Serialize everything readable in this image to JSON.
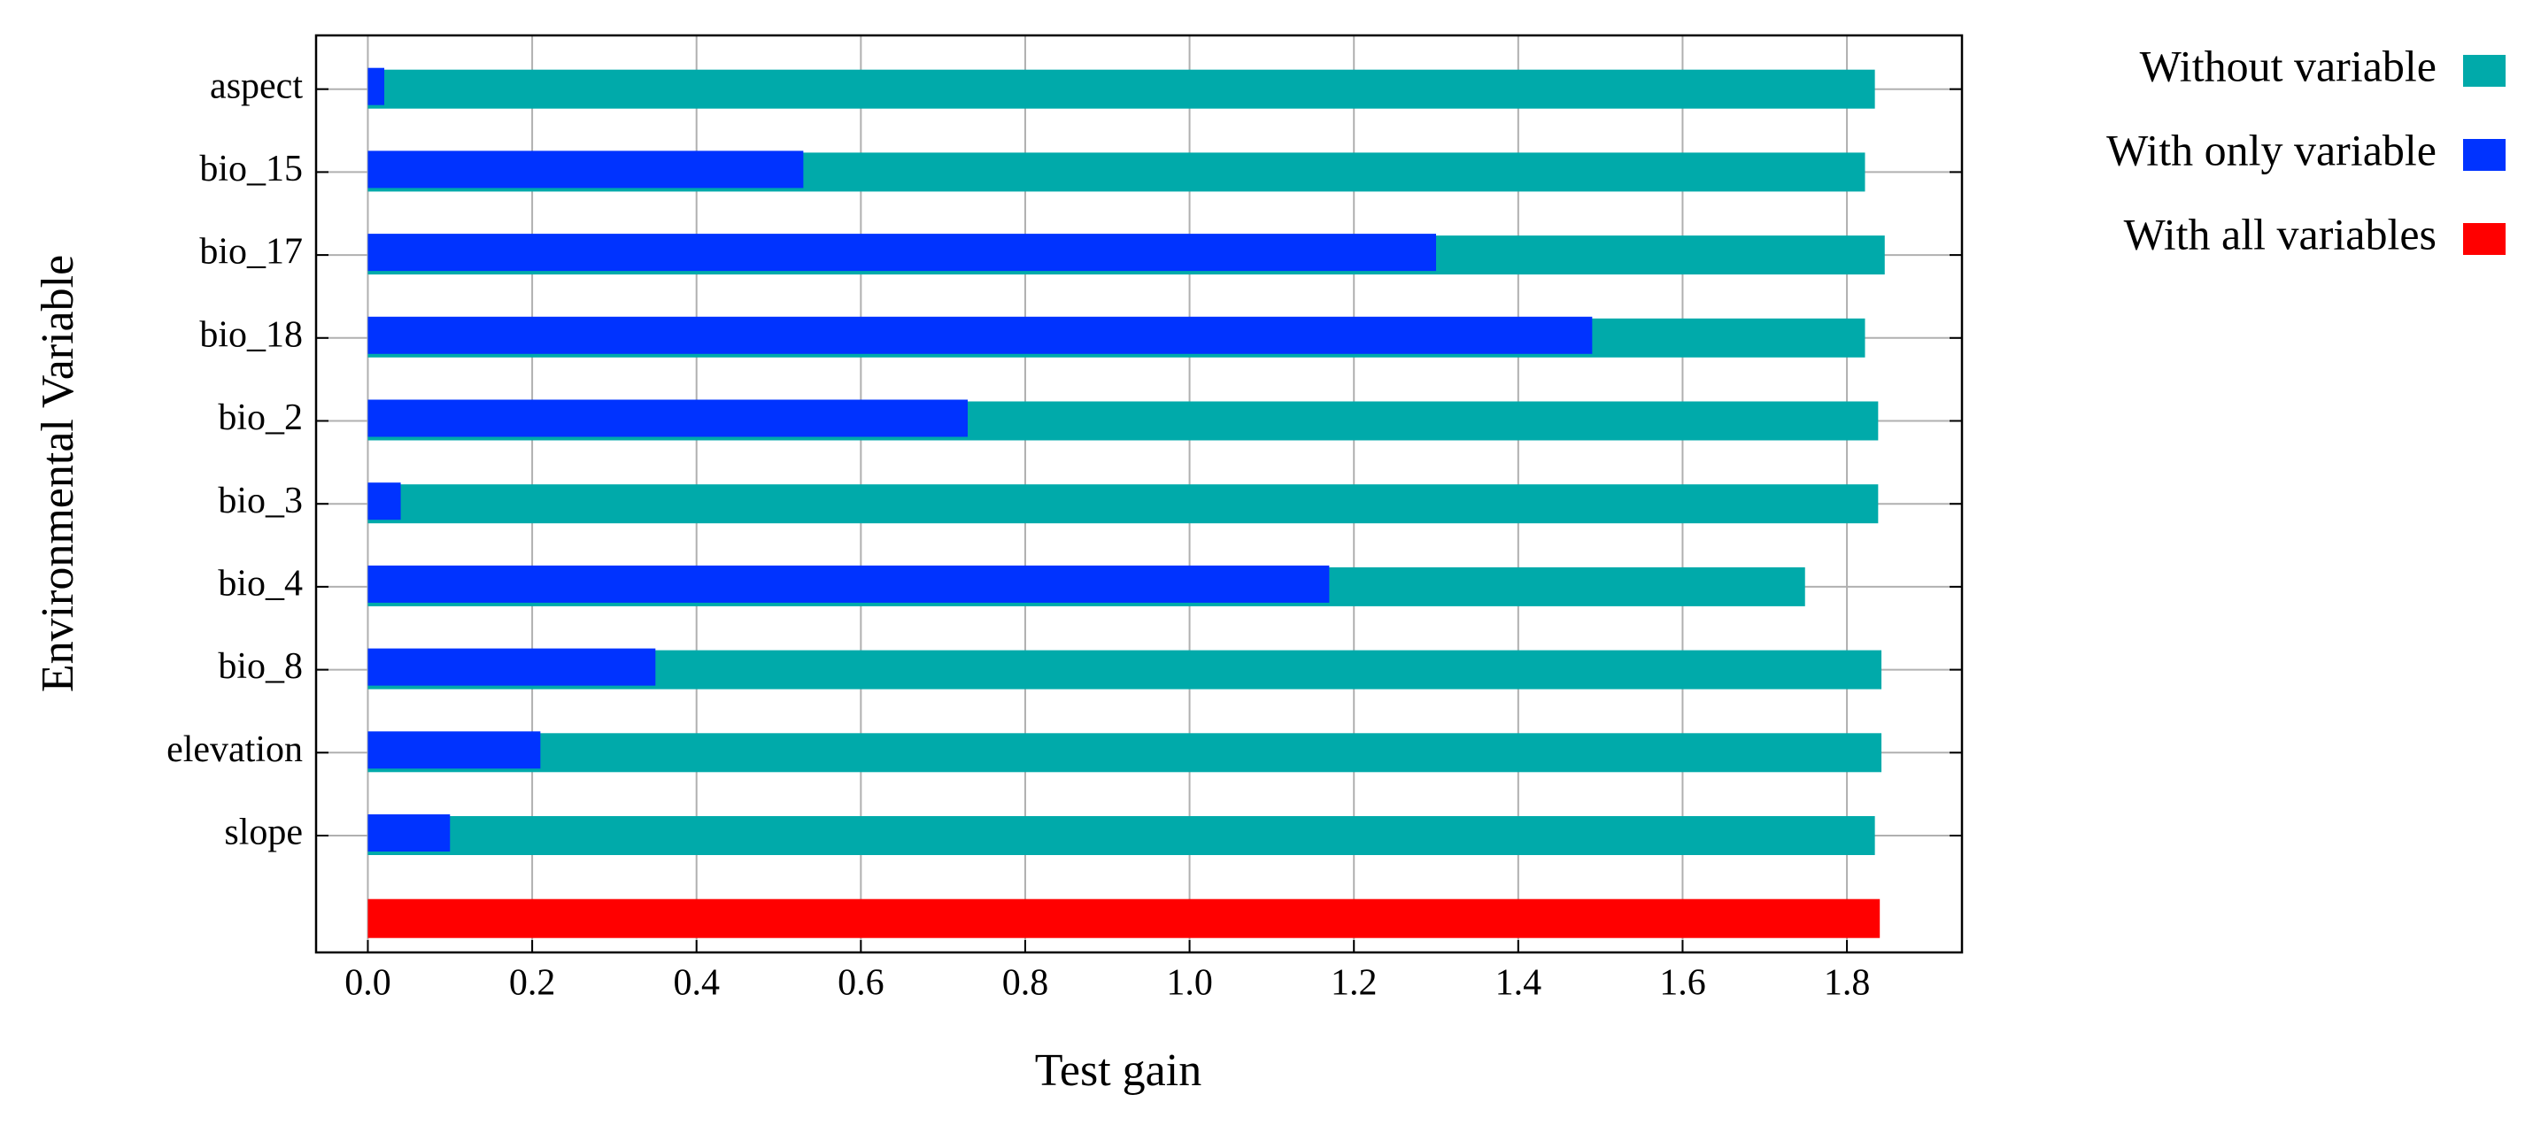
{
  "chart_data": {
    "type": "bar",
    "orientation": "horizontal",
    "x_label": "Test gain",
    "y_label": "Environmental Variable",
    "categories": [
      "aspect",
      "bio_15",
      "bio_17",
      "bio_18",
      "bio_2",
      "bio_3",
      "bio_4",
      "bio_8",
      "elevation",
      "slope",
      null
    ],
    "series": [
      {
        "name": "Without variable",
        "color": "#00aaaa",
        "values": [
          1.834,
          1.822,
          1.846,
          1.822,
          1.838,
          1.838,
          1.749,
          1.842,
          1.842,
          1.834,
          null
        ]
      },
      {
        "name": "With only variable",
        "color": "#0033ff",
        "values": [
          0.02,
          0.53,
          1.3,
          1.49,
          0.73,
          0.04,
          1.17,
          0.35,
          0.21,
          0.1,
          null
        ]
      },
      {
        "name": "With all variables",
        "color": "#ff0000",
        "values": [
          null,
          null,
          null,
          null,
          null,
          null,
          null,
          null,
          null,
          null,
          1.84
        ]
      }
    ],
    "xlim": [
      -0.063,
      1.94
    ],
    "xticks": [
      {
        "value": 0,
        "label": "0.0"
      },
      0.2,
      0.4,
      0.6,
      0.8,
      {
        "value": 1,
        "label": "1.0"
      },
      1.2,
      1.4,
      1.6,
      1.8
    ],
    "grid": true,
    "legend": "outside right"
  }
}
